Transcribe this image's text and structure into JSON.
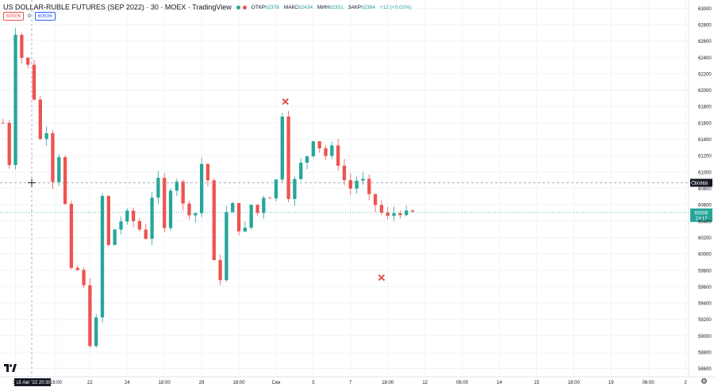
{
  "header": {
    "title": "US DOLLAR-RUBLE FUTURES (SEP 2022) · 30 · MOEX · TradingView",
    "ohlc": [
      {
        "label": "ОТКР",
        "value": "62376"
      },
      {
        "label": "МАКС",
        "value": "62434"
      },
      {
        "label": "МИН",
        "value": "62351"
      },
      {
        "label": "ЗАКР",
        "value": "62384"
      }
    ],
    "change": "+12 (+0.02%)",
    "sell_price": "60506",
    "spread": "0",
    "buy_price": "60506"
  },
  "crosshair": {
    "date_label": "15 Авг '22",
    "time_label": "20:30",
    "price_label": "60868"
  },
  "last_price": {
    "price": "60506",
    "countdown": "13:17"
  },
  "icons": {
    "logo": "tradingview-logo-icon",
    "settings": "gear-icon"
  },
  "colors": {
    "up": "#26a69a",
    "down": "#ef5350",
    "marker": "#e05252",
    "crosshair_label": "#131722",
    "last_price_label": "#26a69a"
  },
  "chart_data": {
    "type": "candlestick",
    "symbol": "US DOLLAR-RUBLE FUTURES (SEP 2022)",
    "interval": "30",
    "exchange": "MOEX",
    "y_ticks": [
      58600,
      58800,
      59000,
      59200,
      59400,
      59600,
      59800,
      60000,
      60200,
      60400,
      60600,
      60800,
      61000,
      61200,
      61400,
      61600,
      61800,
      62000,
      62200,
      62400,
      62600,
      62800,
      63000
    ],
    "ylim": [
      58500,
      63100
    ],
    "x_ticks": [
      "17",
      "18:00",
      "22",
      "24",
      "18:00",
      "29",
      "18:00",
      "Сен",
      "5",
      "7",
      "18:00",
      "12",
      "06:00",
      "14",
      "15",
      "18:00",
      "19",
      "06:00",
      "2"
    ],
    "x_tick_index": [
      2,
      8.5,
      14,
      20,
      26,
      32,
      38,
      44,
      50,
      56,
      62,
      68,
      74,
      80,
      86,
      92,
      98,
      104,
      110
    ],
    "x_total_slots": 111,
    "bars": 67,
    "price_path": [
      61600,
      61100,
      62700,
      62400,
      62300,
      61900,
      61400,
      61500,
      60900,
      61200,
      60600,
      59800,
      59800,
      59600,
      58900,
      59200,
      60700,
      60100,
      60300,
      60400,
      60500,
      60400,
      60300,
      60200,
      60700,
      60900,
      60300,
      60800,
      60900,
      60600,
      60500,
      60500,
      61100,
      60900,
      59900,
      59700,
      60500,
      60600,
      60300,
      60300,
      60600,
      60500,
      60700,
      60700,
      60900,
      61700,
      60700,
      60900,
      61100,
      61200,
      61400,
      61300,
      61200,
      61300,
      61100,
      60900,
      60800,
      60900,
      60900,
      60700,
      60600,
      60500,
      60450,
      60500,
      60500,
      60500,
      60506
    ],
    "markers": [
      {
        "type": "x",
        "bar_index": 45.5,
        "price": 61860
      },
      {
        "type": "x",
        "bar_slot": 61,
        "price": 59710
      }
    ],
    "crosshair_price": 60868,
    "last_price": 60506,
    "grid": true
  }
}
